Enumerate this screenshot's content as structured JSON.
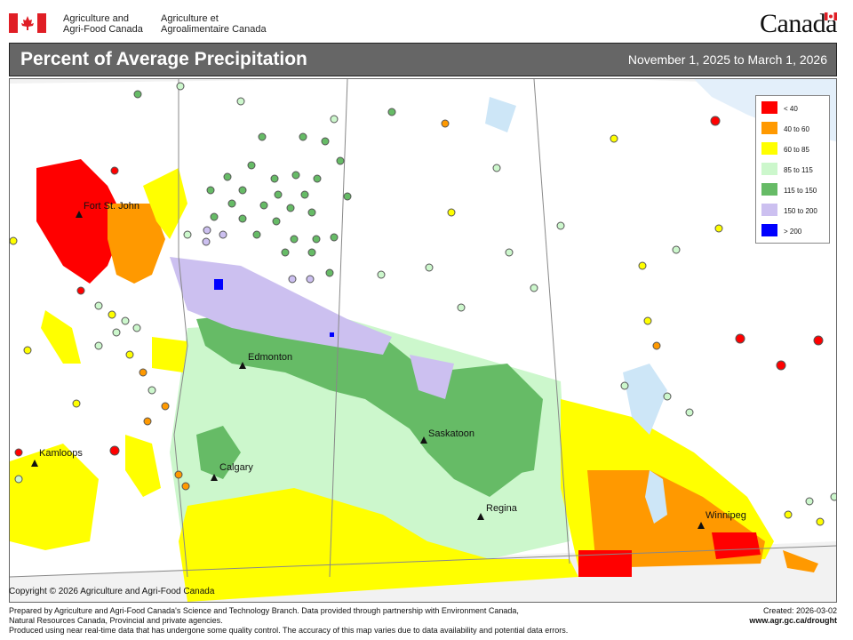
{
  "header": {
    "agency_en_line1": "Agriculture and",
    "agency_en_line2": "Agri-Food Canada",
    "agency_fr_line1": "Agriculture et",
    "agency_fr_line2": "Agroalimentaire Canada",
    "wordmark": "Canada",
    "flag_color": "#e01e25"
  },
  "title": {
    "main": "Percent of Average Precipitation",
    "date_range": "November 1, 2025 to March 1, 2026"
  },
  "legend": [
    {
      "label": "< 40",
      "color": "#ff0000"
    },
    {
      "label": "40 to 60",
      "color": "#ff9900"
    },
    {
      "label": "60 to 85",
      "color": "#ffff00"
    },
    {
      "label": "85 to 115",
      "color": "#ccf7cc"
    },
    {
      "label": "115 to 150",
      "color": "#66bb66"
    },
    {
      "label": "150 to 200",
      "color": "#ccc0f0"
    },
    {
      "label": "> 200",
      "color": "#0000ff"
    }
  ],
  "cities": [
    {
      "name": "Fort St. John"
    },
    {
      "name": "Edmonton"
    },
    {
      "name": "Calgary"
    },
    {
      "name": "Kamloops"
    },
    {
      "name": "Saskatoon"
    },
    {
      "name": "Regina"
    },
    {
      "name": "Winnipeg"
    }
  ],
  "copyright": "Copyright © 2026 Agriculture and Agri-Food Canada",
  "footer": {
    "line1": "Prepared by Agriculture and Agri-Food Canada's Science and Technology Branch. Data provided through partnership with Environment Canada,",
    "line2": "Natural Resources Canada, Provincial and private agencies.",
    "line3": "Produced using near real-time data that has undergone some quality control. The accuracy of this map varies due to data availability and potential data errors."
  },
  "created": {
    "text": "Created: 2026-03-02",
    "url": "www.agr.gc.ca/drought"
  }
}
